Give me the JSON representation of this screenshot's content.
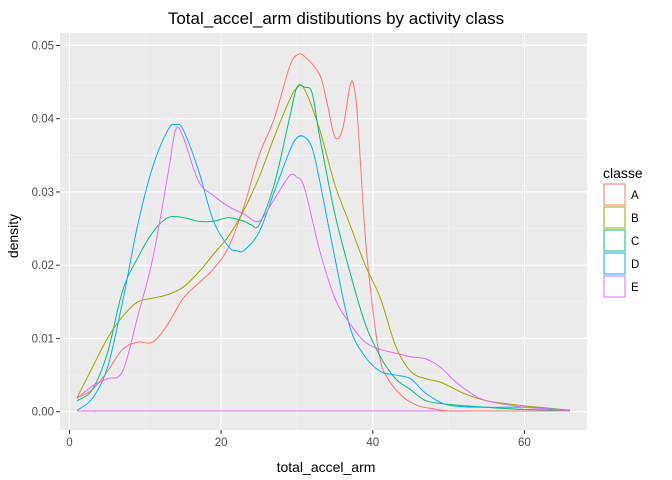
{
  "chart_data": {
    "type": "line",
    "title": "Total_accel_arm distibutions by activity class",
    "xlabel": "total_accel_arm",
    "ylabel": "density",
    "xlim": [
      -1.25,
      68.25
    ],
    "ylim": [
      -0.0025,
      0.0517
    ],
    "x_ticks": [
      0,
      20,
      40,
      60
    ],
    "x_tick_labels": [
      "0",
      "20",
      "40",
      "60"
    ],
    "y_ticks": [
      0,
      0.01,
      0.02,
      0.03,
      0.04,
      0.05
    ],
    "y_tick_labels": [
      "0.00",
      "0.01",
      "0.02",
      "0.03",
      "0.04",
      "0.05"
    ],
    "grid": true,
    "legend": {
      "title": "classe",
      "position": "right"
    },
    "series": [
      {
        "name": "A",
        "color": "#F8766D",
        "points": [
          [
            1,
            0.0019
          ],
          [
            3,
            0.003
          ],
          [
            5,
            0.0055
          ],
          [
            7,
            0.0085
          ],
          [
            9,
            0.0095
          ],
          [
            11,
            0.0095
          ],
          [
            13,
            0.012
          ],
          [
            15,
            0.0155
          ],
          [
            17,
            0.0175
          ],
          [
            19,
            0.0195
          ],
          [
            21,
            0.0225
          ],
          [
            23,
            0.028
          ],
          [
            25,
            0.035
          ],
          [
            27,
            0.04
          ],
          [
            29,
            0.047
          ],
          [
            30,
            0.0487
          ],
          [
            31,
            0.0485
          ],
          [
            33,
            0.046
          ],
          [
            34,
            0.042
          ],
          [
            35,
            0.0375
          ],
          [
            36,
            0.0385
          ],
          [
            37,
            0.0445
          ],
          [
            37.5,
            0.0445
          ],
          [
            38,
            0.04
          ],
          [
            39,
            0.024
          ],
          [
            40,
            0.014
          ],
          [
            41,
            0.007
          ],
          [
            42,
            0.0045
          ],
          [
            44,
            0.002
          ],
          [
            46,
            0.0008
          ],
          [
            48,
            0.0004
          ],
          [
            50,
            0.0001
          ],
          [
            55,
            0.0001
          ],
          [
            60,
            0.0001
          ],
          [
            66,
            0.0001
          ]
        ]
      },
      {
        "name": "B",
        "color": "#A3A500",
        "points": [
          [
            1,
            0.0019
          ],
          [
            3,
            0.006
          ],
          [
            5,
            0.01
          ],
          [
            7,
            0.013
          ],
          [
            9,
            0.015
          ],
          [
            11,
            0.0155
          ],
          [
            13,
            0.016
          ],
          [
            15,
            0.017
          ],
          [
            17,
            0.019
          ],
          [
            19,
            0.0215
          ],
          [
            21,
            0.024
          ],
          [
            23,
            0.0275
          ],
          [
            25,
            0.032
          ],
          [
            27,
            0.0375
          ],
          [
            29,
            0.0425
          ],
          [
            30,
            0.0442
          ],
          [
            31,
            0.044
          ],
          [
            33,
            0.0385
          ],
          [
            35,
            0.031
          ],
          [
            37,
            0.0255
          ],
          [
            39,
            0.02
          ],
          [
            41,
            0.0155
          ],
          [
            43,
            0.009
          ],
          [
            45,
            0.0055
          ],
          [
            47,
            0.0045
          ],
          [
            49,
            0.004
          ],
          [
            52,
            0.0025
          ],
          [
            55,
            0.0015
          ],
          [
            60,
            0.0008
          ],
          [
            63,
            0.0005
          ],
          [
            66,
            0.0002
          ]
        ]
      },
      {
        "name": "C",
        "color": "#00BF7D",
        "points": [
          [
            1,
            0.0015
          ],
          [
            3,
            0.003
          ],
          [
            5,
            0.008
          ],
          [
            7,
            0.0165
          ],
          [
            9,
            0.021
          ],
          [
            11,
            0.0245
          ],
          [
            13,
            0.0265
          ],
          [
            15,
            0.0265
          ],
          [
            17,
            0.026
          ],
          [
            19,
            0.026
          ],
          [
            21,
            0.0265
          ],
          [
            23,
            0.026
          ],
          [
            24,
            0.0255
          ],
          [
            25,
            0.0255
          ],
          [
            27,
            0.031
          ],
          [
            29,
            0.04
          ],
          [
            30,
            0.0443
          ],
          [
            31,
            0.0443
          ],
          [
            32,
            0.0435
          ],
          [
            33,
            0.0375
          ],
          [
            35,
            0.027
          ],
          [
            37,
            0.019
          ],
          [
            39,
            0.012
          ],
          [
            41,
            0.0075
          ],
          [
            43,
            0.0045
          ],
          [
            45,
            0.003
          ],
          [
            47,
            0.0015
          ],
          [
            50,
            0.001
          ],
          [
            55,
            0.0006
          ],
          [
            60,
            0.0003
          ],
          [
            66,
            0.0002
          ]
        ]
      },
      {
        "name": "D",
        "color": "#00B0F6",
        "points": [
          [
            1,
            0.0002
          ],
          [
            3,
            0.0018
          ],
          [
            5,
            0.006
          ],
          [
            7,
            0.015
          ],
          [
            9,
            0.0255
          ],
          [
            11,
            0.0335
          ],
          [
            13,
            0.0385
          ],
          [
            14,
            0.0392
          ],
          [
            15,
            0.0385
          ],
          [
            17,
            0.033
          ],
          [
            19,
            0.026
          ],
          [
            21,
            0.0225
          ],
          [
            22,
            0.022
          ],
          [
            23,
            0.022
          ],
          [
            25,
            0.0245
          ],
          [
            27,
            0.03
          ],
          [
            29,
            0.0355
          ],
          [
            30,
            0.0374
          ],
          [
            31,
            0.0375
          ],
          [
            32,
            0.036
          ],
          [
            33,
            0.0315
          ],
          [
            35,
            0.021
          ],
          [
            37,
            0.0115
          ],
          [
            39,
            0.0075
          ],
          [
            41,
            0.0055
          ],
          [
            43,
            0.005
          ],
          [
            45,
            0.0045
          ],
          [
            47,
            0.0025
          ],
          [
            50,
            0.0009
          ],
          [
            55,
            0.0006
          ],
          [
            60,
            0.0006
          ],
          [
            66,
            0.0002
          ]
        ]
      },
      {
        "name": "E",
        "color": "#E76BF3",
        "points": [
          [
            1,
            0.0018
          ],
          [
            3,
            0.0035
          ],
          [
            5,
            0.0045
          ],
          [
            7,
            0.0055
          ],
          [
            9,
            0.013
          ],
          [
            11,
            0.021
          ],
          [
            13,
            0.0325
          ],
          [
            14,
            0.0385
          ],
          [
            15,
            0.0375
          ],
          [
            17,
            0.0315
          ],
          [
            19,
            0.0295
          ],
          [
            21,
            0.028
          ],
          [
            23,
            0.027
          ],
          [
            25,
            0.026
          ],
          [
            27,
            0.029
          ],
          [
            29,
            0.0322
          ],
          [
            30,
            0.032
          ],
          [
            31,
            0.0305
          ],
          [
            33,
            0.022
          ],
          [
            35,
            0.0155
          ],
          [
            37,
            0.012
          ],
          [
            39,
            0.0095
          ],
          [
            41,
            0.0085
          ],
          [
            43,
            0.008
          ],
          [
            45,
            0.0075
          ],
          [
            47,
            0.0072
          ],
          [
            49,
            0.006
          ],
          [
            51,
            0.004
          ],
          [
            53,
            0.0025
          ],
          [
            55,
            0.0015
          ],
          [
            60,
            0.0006
          ],
          [
            63,
            0.0004
          ],
          [
            66,
            0.0001
          ]
        ]
      }
    ],
    "baseline": {
      "color": "#E76BF3",
      "points": [
        [
          1,
          0.0001
        ],
        [
          66,
          0.0001
        ]
      ]
    }
  }
}
